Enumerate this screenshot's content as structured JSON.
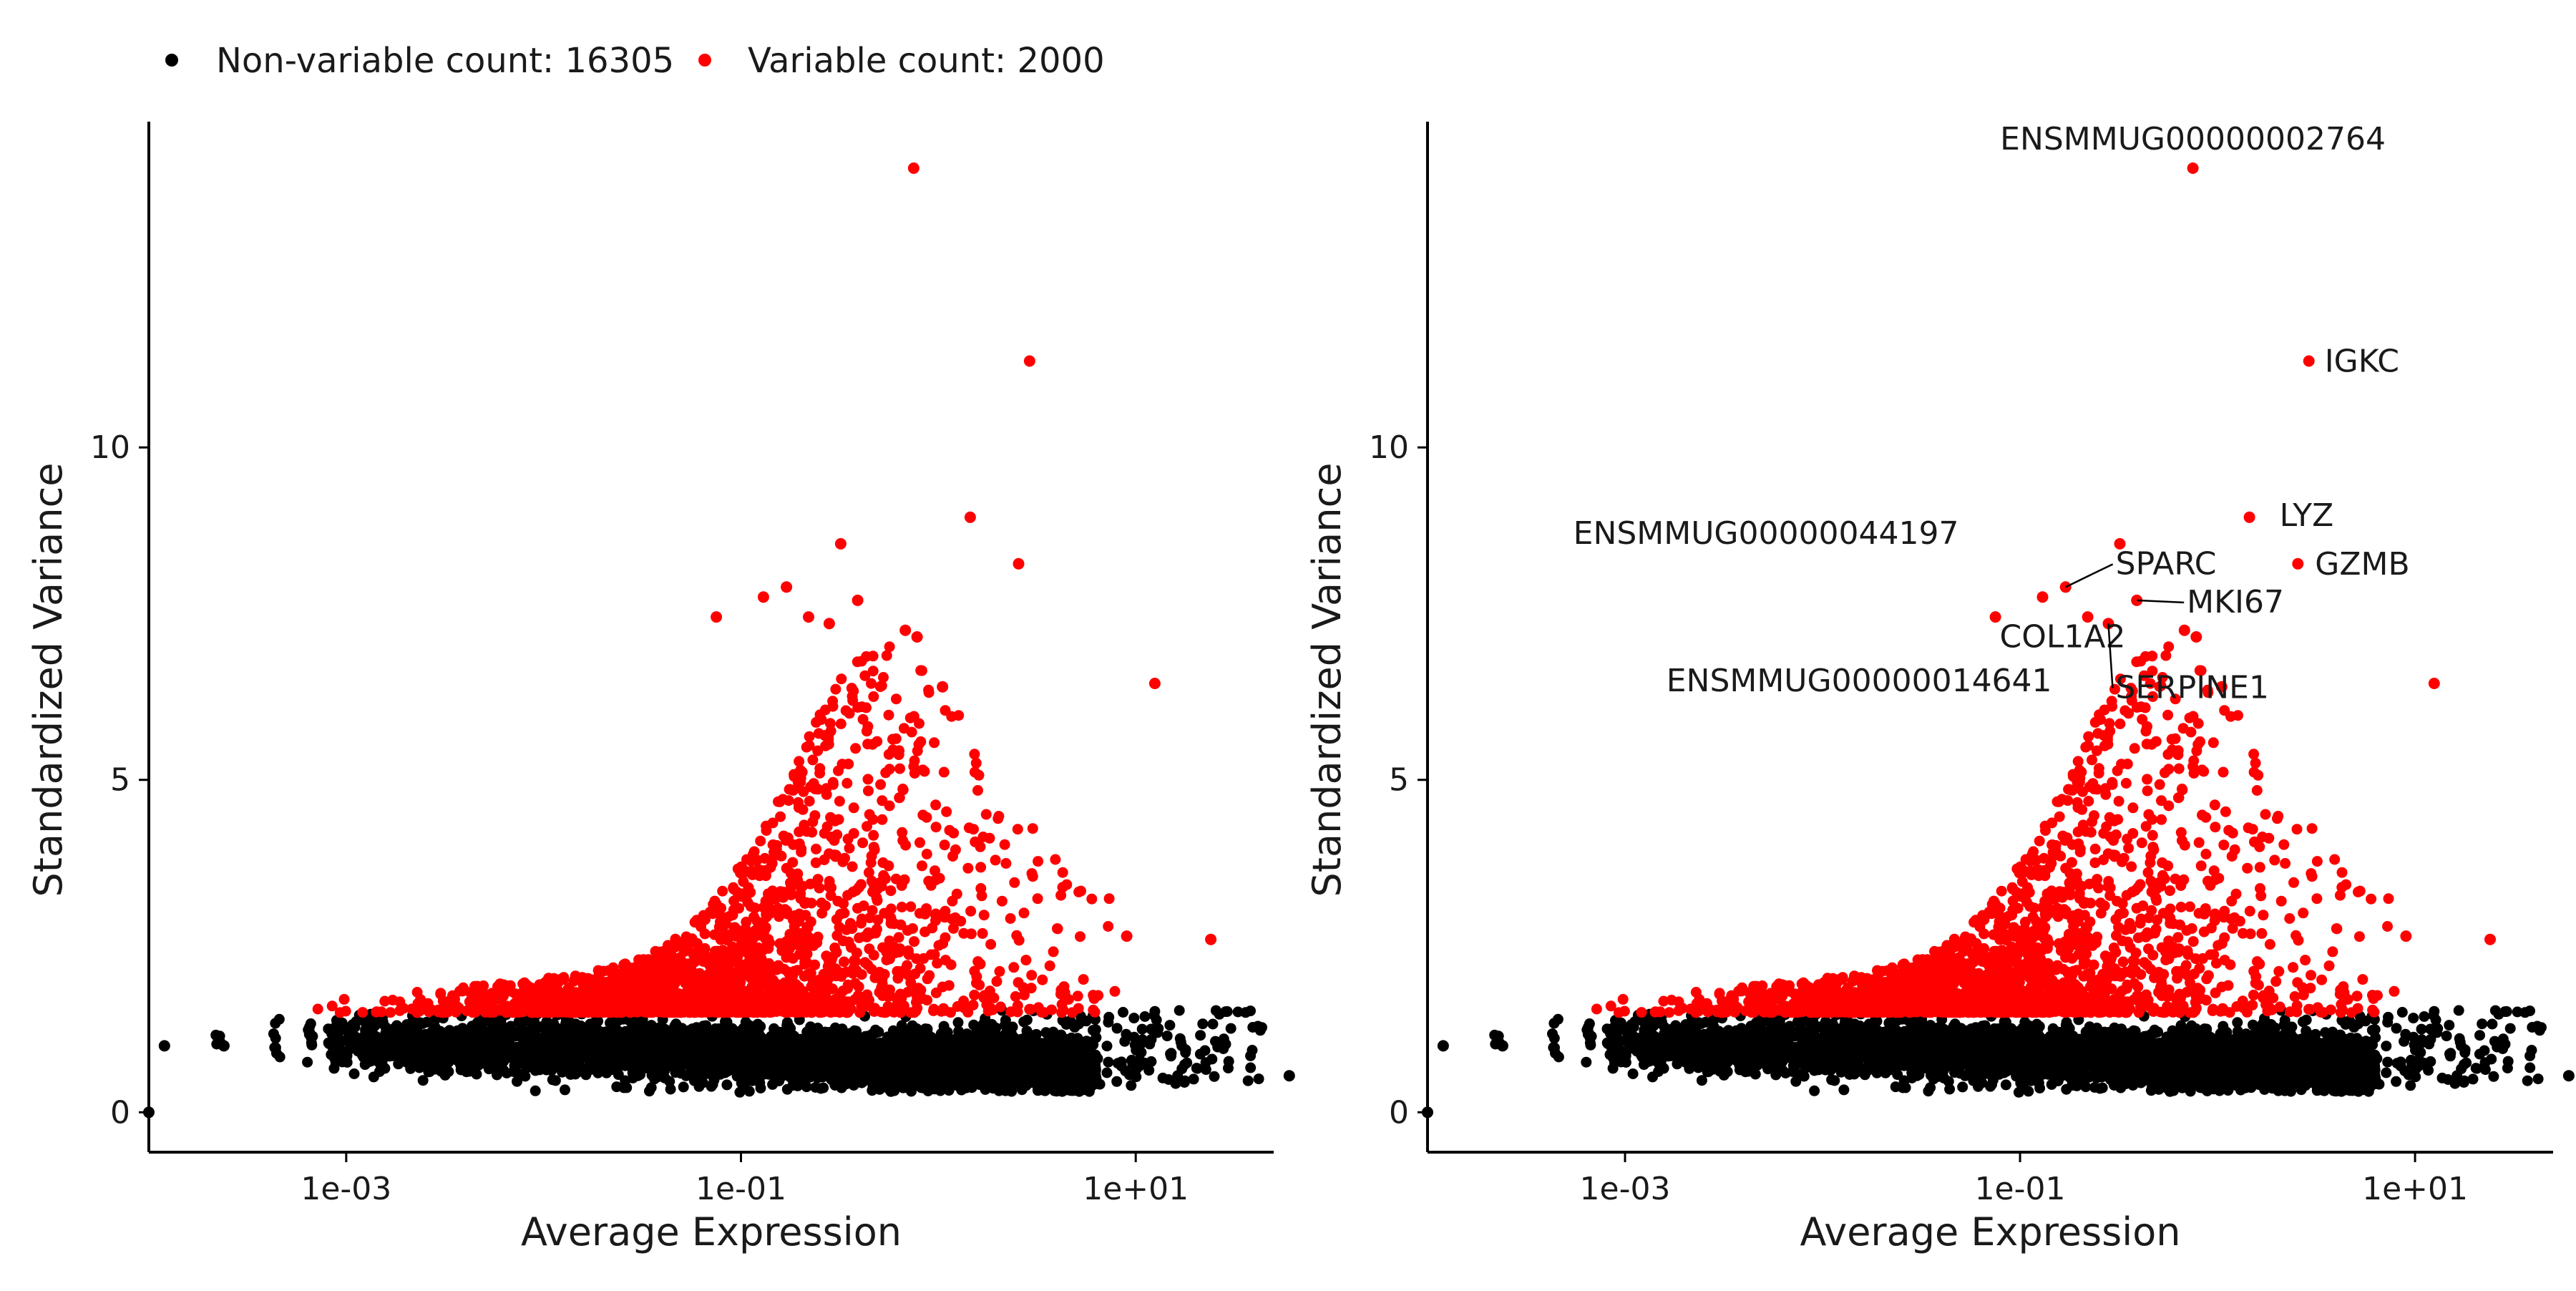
{
  "legend": {
    "items": [
      {
        "label": "Non-variable count: 16305",
        "color": "#000000"
      },
      {
        "label": "Variable count: 2000",
        "color": "#ff0000"
      }
    ]
  },
  "colors": {
    "nonvariable": "#000000",
    "variable": "#ff0000",
    "axis": "#000000",
    "text": "#1a1a1a"
  },
  "chart_data": [
    {
      "type": "scatter",
      "panel": "left",
      "xlabel": "Average Expression",
      "ylabel": "Standardized Variance",
      "x_scale": "log10",
      "xlim": [
        0.0001,
        50
      ],
      "ylim": [
        -0.6,
        14.9
      ],
      "xticks": [
        {
          "value": 0.001,
          "label": "1e-03"
        },
        {
          "value": 0.1,
          "label": "1e-01"
        },
        {
          "value": 10,
          "label": "1e+01"
        }
      ],
      "yticks": [
        {
          "value": 0,
          "label": "0"
        },
        {
          "value": 5,
          "label": "5"
        },
        {
          "value": 10,
          "label": "10"
        }
      ],
      "grid": false,
      "series": [
        {
          "name": "Non-variable count: 16305",
          "color": "#000000"
        },
        {
          "name": "Variable count: 2000",
          "color": "#ff0000"
        }
      ],
      "highlight_points": [
        {
          "x": 0.75,
          "y": 14.2
        },
        {
          "x": 2.9,
          "y": 11.3
        },
        {
          "x": 1.45,
          "y": 8.95
        },
        {
          "x": 2.55,
          "y": 8.25
        },
        {
          "x": 0.32,
          "y": 8.55
        },
        {
          "x": 0.17,
          "y": 7.9
        },
        {
          "x": 0.13,
          "y": 7.75
        },
        {
          "x": 0.075,
          "y": 7.45
        },
        {
          "x": 0.28,
          "y": 7.35
        },
        {
          "x": 0.22,
          "y": 7.45
        },
        {
          "x": 0.68,
          "y": 7.25
        },
        {
          "x": 0.78,
          "y": 7.15
        },
        {
          "x": 0.39,
          "y": 7.7
        },
        {
          "x": 1.05,
          "y": 6.4
        },
        {
          "x": 12.5,
          "y": 6.45
        },
        {
          "x": 9.0,
          "y": 2.65
        },
        {
          "x": 24.0,
          "y": 2.6
        },
        {
          "x": 60.0,
          "y": 0.55
        },
        {
          "x": 0.00012,
          "y": 1.0
        },
        {
          "x": 0.00024,
          "y": 1.0
        },
        {
          "x": 0.0001,
          "y": 0.0
        }
      ]
    },
    {
      "type": "scatter",
      "panel": "right",
      "xlabel": "Average Expression",
      "ylabel": "Standardized Variance",
      "x_scale": "log10",
      "xlim": [
        0.0001,
        50
      ],
      "ylim": [
        -0.6,
        14.9
      ],
      "xticks": [
        {
          "value": 0.001,
          "label": "1e-03"
        },
        {
          "value": 0.1,
          "label": "1e-01"
        },
        {
          "value": 10,
          "label": "1e+01"
        }
      ],
      "yticks": [
        {
          "value": 0,
          "label": "0"
        },
        {
          "value": 5,
          "label": "5"
        },
        {
          "value": 10,
          "label": "10"
        }
      ],
      "grid": false,
      "series": [
        {
          "name": "Non-variable count: 16305",
          "color": "#000000"
        },
        {
          "name": "Variable count: 2000",
          "color": "#ff0000"
        }
      ],
      "annotations": [
        {
          "label": "ENSMMUG00000002764",
          "x": 0.75,
          "y": 14.2,
          "anchor": "above"
        },
        {
          "label": "IGKC",
          "x": 2.9,
          "y": 11.3,
          "anchor": "right"
        },
        {
          "label": "LYZ",
          "x": 1.45,
          "y": 8.95,
          "anchor": "right"
        },
        {
          "label": "ENSMMUG00000044197",
          "x": 0.32,
          "y": 8.55,
          "anchor": "upper-left"
        },
        {
          "label": "GZMB",
          "x": 2.55,
          "y": 8.25,
          "anchor": "right"
        },
        {
          "label": "SPARC",
          "x": 0.17,
          "y": 7.9,
          "anchor": "upper-right"
        },
        {
          "label": "COL1A2",
          "x": 0.13,
          "y": 7.75,
          "anchor": "below-right"
        },
        {
          "label": "MKI67",
          "x": 0.39,
          "y": 7.7,
          "anchor": "right"
        },
        {
          "label": "SERPINE1",
          "x": 0.28,
          "y": 7.35,
          "anchor": "below-right"
        },
        {
          "label": "ENSMMUG00000014641",
          "x": 0.22,
          "y": 7.45,
          "anchor": "below-left"
        }
      ]
    }
  ]
}
